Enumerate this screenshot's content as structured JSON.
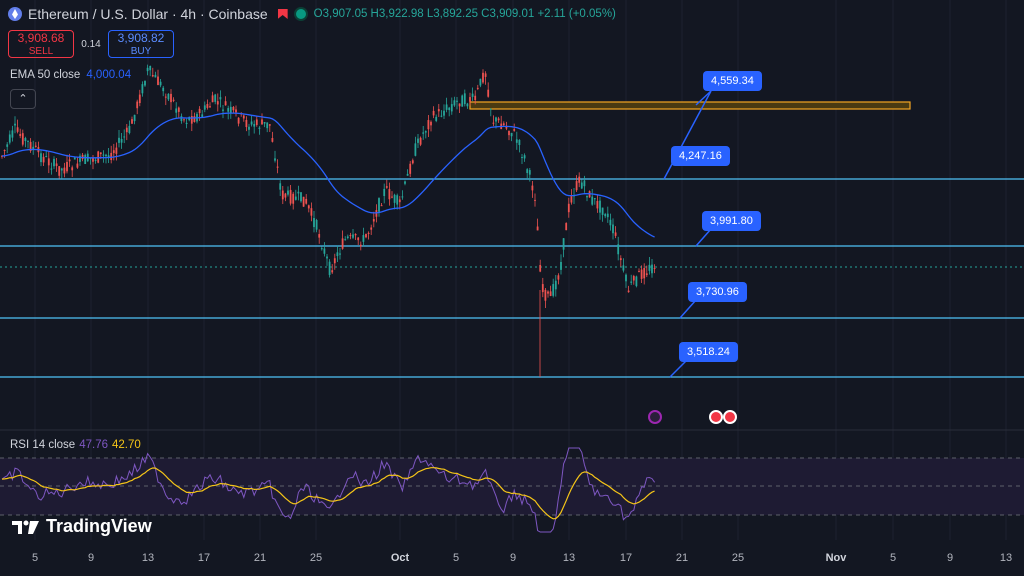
{
  "header": {
    "title": "Ethereum / U.S. Dollar · 4h · Coinbase",
    "ohlc": "O3,907.05 H3,922.98 L3,892.25 C3,909.01 +2.11 (+0.05%)"
  },
  "trade": {
    "sell_price": "3,908.68",
    "sell_label": "SELL",
    "spread": "0.14",
    "buy_price": "3,908.82",
    "buy_label": "BUY"
  },
  "ema": {
    "label": "EMA 50 close",
    "value": "4,000.04"
  },
  "rsi": {
    "label": "RSI 14 close",
    "value1": "47.76",
    "value2": "42.70"
  },
  "logo": {
    "text": "TradingView"
  },
  "colors": {
    "up": "#26a69a",
    "down": "#ef5350",
    "ema": "#2962ff",
    "level": "#4fc3f7",
    "zone": "#f5a623",
    "rsi": "#7e57c2",
    "rsi_ma": "#f5c518"
  },
  "levels": [
    {
      "label": "4,559.34"
    },
    {
      "label": "4,247.16"
    },
    {
      "label": "3,991.80"
    },
    {
      "label": "3,730.96"
    },
    {
      "label": "3,518.24"
    }
  ],
  "x_axis": {
    "labels": [
      "5",
      "9",
      "13",
      "17",
      "21",
      "25",
      "Oct",
      "5",
      "9",
      "13",
      "17",
      "21",
      "25",
      "Nov",
      "5",
      "9",
      "13"
    ]
  },
  "events": [
    "rocket-event-icon",
    "us-flag-event-icon"
  ]
}
